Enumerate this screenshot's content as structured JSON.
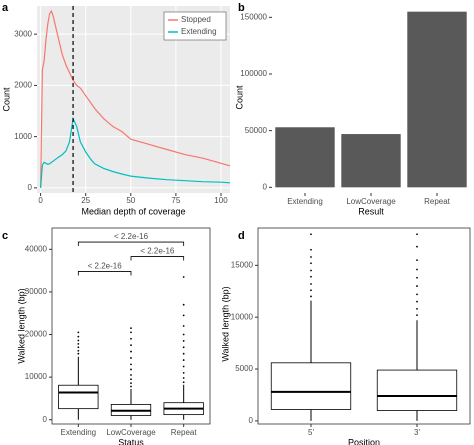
{
  "chart_data": [
    {
      "type": "line",
      "title": "a",
      "xlabel": "Median depth of coverage",
      "ylabel": "Count",
      "x": [
        0,
        1,
        2,
        3,
        4,
        5,
        6,
        7,
        8,
        10,
        12,
        14,
        16,
        18,
        20,
        22,
        25,
        28,
        30,
        35,
        40,
        45,
        50,
        60,
        70,
        80,
        90,
        100,
        105
      ],
      "series": [
        {
          "name": "Stopped",
          "color": "#F8766D",
          "values": [
            0,
            2300,
            2500,
            2900,
            3200,
            3400,
            3450,
            3350,
            3200,
            2900,
            2600,
            2400,
            2250,
            2100,
            2000,
            1950,
            1800,
            1650,
            1550,
            1350,
            1200,
            1100,
            950,
            850,
            750,
            650,
            580,
            480,
            430
          ]
        },
        {
          "name": "Extending",
          "color": "#00BFC4",
          "values": [
            0,
            450,
            500,
            480,
            460,
            470,
            500,
            520,
            550,
            600,
            650,
            720,
            900,
            1350,
            1200,
            900,
            700,
            550,
            470,
            380,
            320,
            270,
            230,
            190,
            160,
            140,
            120,
            110,
            100
          ]
        }
      ],
      "vline": 18,
      "xlim": [
        -2,
        105
      ],
      "xticks": [
        0,
        25,
        50,
        75,
        100
      ],
      "ylim": [
        -100,
        3550
      ],
      "yticks": [
        0,
        1000,
        2000,
        3000
      ],
      "grid": true,
      "background": "#EBEBEB",
      "legend": "top-right"
    },
    {
      "type": "bar",
      "title": "b",
      "xlabel": "Result",
      "ylabel": "Count",
      "categories": [
        "Extending",
        "LowCoverage",
        "Repeat"
      ],
      "values": [
        53000,
        47000,
        155000
      ],
      "color": "#595959",
      "ylim": [
        -5000,
        160000
      ],
      "yticks": [
        0,
        50000,
        100000,
        150000
      ],
      "grid": false,
      "background": "#FFFFFF"
    },
    {
      "type": "box",
      "title": "c",
      "xlabel": "Status",
      "ylabel": "Walked length (bp)",
      "categories": [
        "Extending",
        "LowCoverage",
        "Repeat"
      ],
      "boxes": [
        {
          "low": 0,
          "q1": 2600,
          "median": 6400,
          "q3": 8100,
          "high": 14800,
          "outliers": [
            15500,
            16200,
            17000,
            17800,
            18600,
            19500,
            20500
          ]
        },
        {
          "low": 0,
          "q1": 1000,
          "median": 2100,
          "q3": 3600,
          "high": 7200,
          "outliers": [
            7800,
            8600,
            9500,
            10500,
            11800,
            13000,
            14500,
            16000,
            17500,
            19000,
            20500,
            21500
          ]
        },
        {
          "low": 0,
          "q1": 1200,
          "median": 2600,
          "q3": 4000,
          "high": 8200,
          "outliers": [
            8800,
            9800,
            11000,
            12500,
            14000,
            15500,
            17000,
            18500,
            20000,
            22000,
            24500,
            27000,
            33500
          ]
        }
      ],
      "annotations": [
        {
          "label": "< 2.2e-16",
          "start": 0,
          "end": 2,
          "y": 41700
        },
        {
          "label": "< 2.2e-16",
          "start": 1,
          "end": 2,
          "y": 38300
        },
        {
          "label": "< 2.2e-16",
          "start": 0,
          "end": 1,
          "y": 34800
        }
      ],
      "ylim": [
        -1000,
        45000
      ],
      "yticks": [
        0,
        10000,
        20000,
        30000,
        40000
      ],
      "grid": false,
      "background": "#FFFFFF"
    },
    {
      "type": "box",
      "title": "d",
      "xlabel": "Position",
      "ylabel": "Walked length (bp)",
      "categories": [
        "5'",
        "3'"
      ],
      "boxes": [
        {
          "low": 0,
          "q1": 1100,
          "median": 2800,
          "q3": 5600,
          "high": 11600,
          "outliers": [
            12000,
            12600,
            13200,
            13900,
            14500,
            15200,
            15800,
            16500,
            18000
          ]
        },
        {
          "low": 0,
          "q1": 1000,
          "median": 2400,
          "q3": 4900,
          "high": 9700,
          "outliers": [
            10200,
            10800,
            11500,
            12200,
            13000,
            13800,
            14600,
            15500,
            16800,
            18000
          ]
        }
      ],
      "ylim": [
        -300,
        18600
      ],
      "yticks": [
        0,
        5000,
        10000,
        15000
      ],
      "grid": false,
      "background": "#FFFFFF"
    }
  ]
}
